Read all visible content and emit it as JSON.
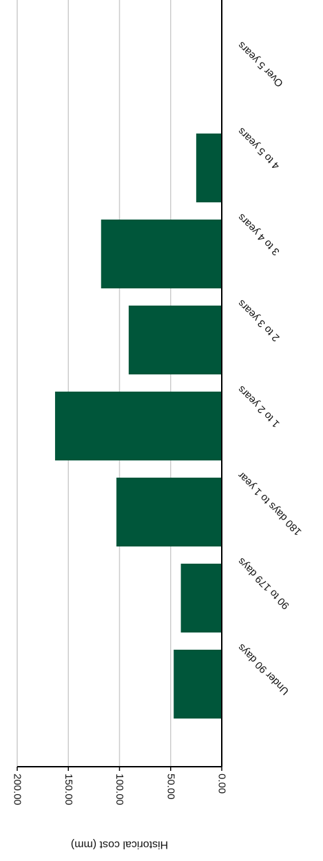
{
  "chart_data": {
    "type": "bar",
    "orientation": "rotated-180",
    "categories": [
      "Under 90 days",
      "90 to 179 days",
      "180 days to 1 year",
      "1 to 2 years",
      "2 to 3 years",
      "3 to 4 years",
      "4 to 5 years",
      "Over 5 years"
    ],
    "values": [
      47,
      40,
      103,
      163,
      91,
      118,
      25,
      0
    ],
    "ylabel": "Historical cost (mm)",
    "xlabel": "",
    "ylim": [
      0,
      200
    ],
    "yticks": [
      "0.00",
      "50.00",
      "100.00",
      "150.00",
      "200.00"
    ],
    "grid": true,
    "bar_color": "#00563a",
    "grid_color": "#cccccc",
    "axis_color": "#000000"
  }
}
